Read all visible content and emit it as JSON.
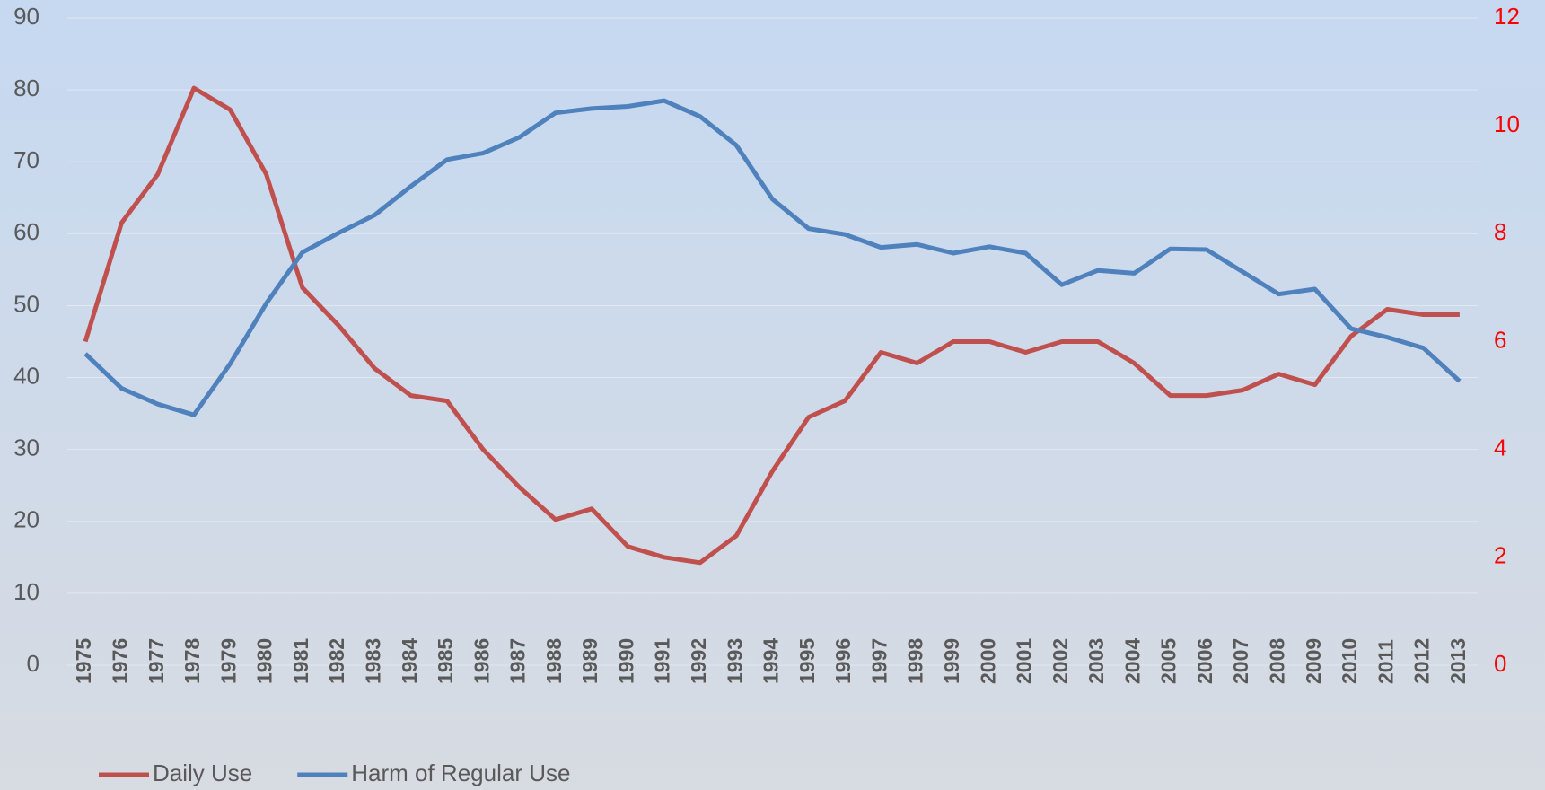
{
  "chart_data": {
    "type": "line",
    "categories": [
      "1975",
      "1976",
      "1977",
      "1978",
      "1979",
      "1980",
      "1981",
      "1982",
      "1983",
      "1984",
      "1985",
      "1986",
      "1987",
      "1988",
      "1989",
      "1990",
      "1991",
      "1992",
      "1993",
      "1994",
      "1995",
      "1996",
      "1997",
      "1998",
      "1999",
      "2000",
      "2001",
      "2002",
      "2003",
      "2004",
      "2005",
      "2006",
      "2007",
      "2008",
      "2009",
      "2010",
      "2011",
      "2012",
      "2013"
    ],
    "series": [
      {
        "name": "Daily Use",
        "color": "#c0504d",
        "axis": "y2",
        "values": [
          6.0,
          8.2,
          9.1,
          10.7,
          10.3,
          9.1,
          7.0,
          6.3,
          5.5,
          5.0,
          4.9,
          4.0,
          3.3,
          2.7,
          2.9,
          2.2,
          2.0,
          1.9,
          2.4,
          3.6,
          4.6,
          4.9,
          5.8,
          5.6,
          6.0,
          6.0,
          5.8,
          6.0,
          6.0,
          5.6,
          5.0,
          5.0,
          5.1,
          5.4,
          5.2,
          6.1,
          6.6,
          6.5,
          6.5
        ]
      },
      {
        "name": "Harm of Regular Use",
        "color": "#4f81bd",
        "values": [
          43.3,
          38.5,
          36.3,
          34.8,
          41.9,
          50.3,
          57.4,
          60.1,
          62.6,
          66.6,
          70.3,
          71.2,
          73.4,
          76.8,
          77.4,
          77.7,
          78.5,
          76.3,
          72.3,
          64.8,
          60.7,
          59.9,
          58.1,
          58.5,
          57.3,
          58.2,
          57.3,
          52.9,
          54.9,
          54.5,
          57.9,
          57.8,
          54.7,
          51.6,
          52.3,
          46.8,
          45.6,
          44.1,
          39.5
        ]
      }
    ],
    "ylim": [
      0,
      90
    ],
    "yticks": [
      0,
      10,
      20,
      30,
      40,
      50,
      60,
      70,
      80,
      90
    ],
    "y2lim": [
      0,
      12
    ],
    "y2ticks": [
      0,
      2,
      4,
      6,
      8,
      10,
      12
    ],
    "y2_color": "#ff0000",
    "grid": true,
    "legend": "bottom-left"
  }
}
